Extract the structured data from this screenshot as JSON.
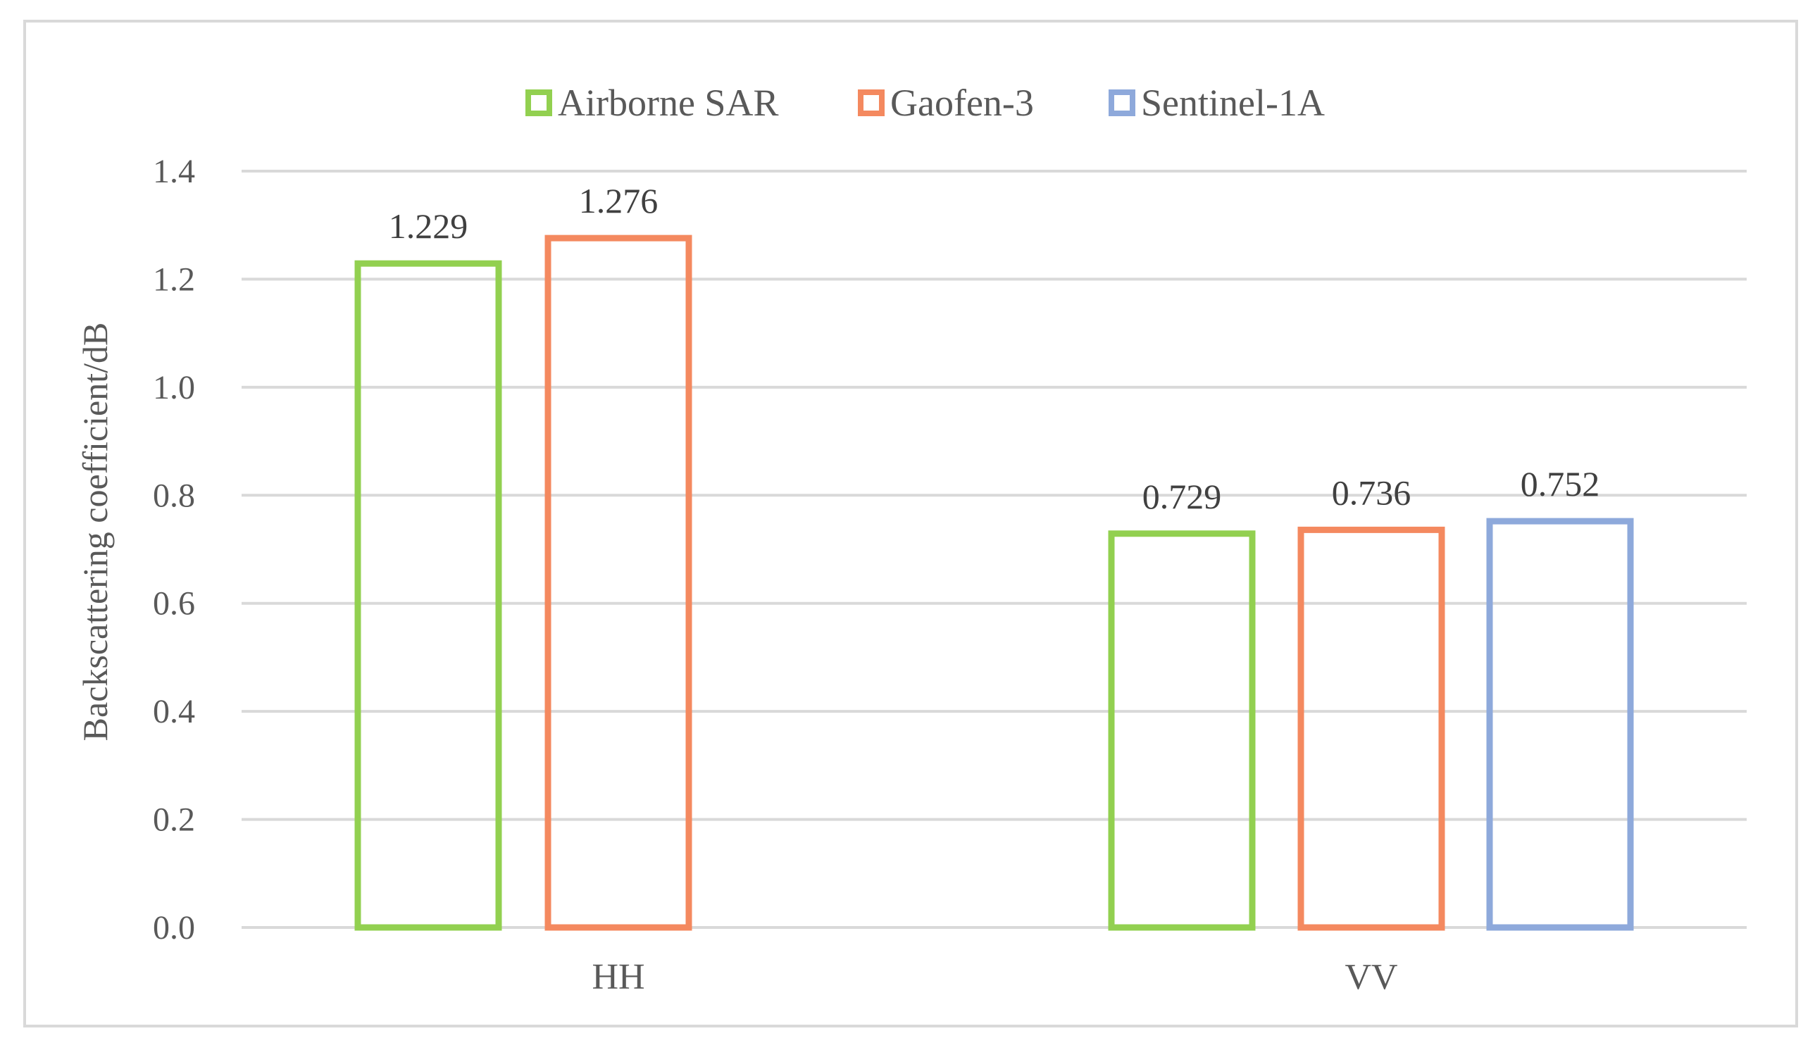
{
  "chart_data": {
    "type": "bar",
    "title": "",
    "xlabel": "",
    "ylabel": "Backscattering coefficient/dB",
    "ylim": [
      0,
      1.4
    ],
    "yticks": [
      "0.0",
      "0.2",
      "0.4",
      "0.6",
      "0.8",
      "1.0",
      "1.2",
      "1.4"
    ],
    "ytick_values": [
      0,
      0.2,
      0.4,
      0.6,
      0.8,
      1.0,
      1.2,
      1.4
    ],
    "grid": true,
    "legend_position": "top-center",
    "categories": [
      "HH",
      "VV"
    ],
    "series": [
      {
        "name": "Airborne SAR",
        "color": "#92d050",
        "values": [
          1.229,
          0.729
        ],
        "labels": [
          "1.229",
          "0.729"
        ]
      },
      {
        "name": "Gaofen-3",
        "color": "#f4895f",
        "values": [
          1.276,
          0.736
        ],
        "labels": [
          "1.276",
          "0.736"
        ]
      },
      {
        "name": "Sentinel-1A",
        "color": "#8ea9db",
        "values": [
          null,
          0.752
        ],
        "labels": [
          null,
          "0.752"
        ]
      }
    ]
  }
}
